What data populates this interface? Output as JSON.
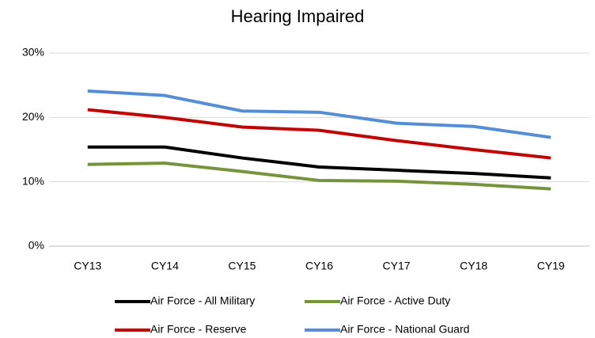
{
  "chart_data": {
    "type": "line",
    "title": "Hearing Impaired",
    "categories": [
      "CY13",
      "CY14",
      "CY15",
      "CY16",
      "CY17",
      "CY18",
      "CY19"
    ],
    "series": [
      {
        "name": "Air Force - All Military",
        "color": "#000000",
        "values": [
          15.4,
          15.4,
          13.7,
          12.3,
          11.8,
          11.3,
          10.6
        ]
      },
      {
        "name": "Air Force - Active Duty",
        "color": "#77933c",
        "values": [
          12.7,
          12.9,
          11.6,
          10.2,
          10.1,
          9.6,
          8.9
        ]
      },
      {
        "name": "Air Force - Reserve",
        "color": "#c00000",
        "values": [
          21.2,
          20.0,
          18.5,
          18.0,
          16.4,
          15.0,
          13.7
        ]
      },
      {
        "name": "Air Force - National Guard",
        "color": "#558ed5",
        "values": [
          24.1,
          23.4,
          21.0,
          20.8,
          19.1,
          18.6,
          16.9
        ]
      }
    ],
    "ylim": [
      0,
      30
    ],
    "yticks": [
      {
        "value": 0,
        "label": "0%"
      },
      {
        "value": 10,
        "label": "10%"
      },
      {
        "value": 20,
        "label": "20%"
      },
      {
        "value": 30,
        "label": "30%"
      }
    ],
    "grid": true,
    "legend": "bottom"
  }
}
